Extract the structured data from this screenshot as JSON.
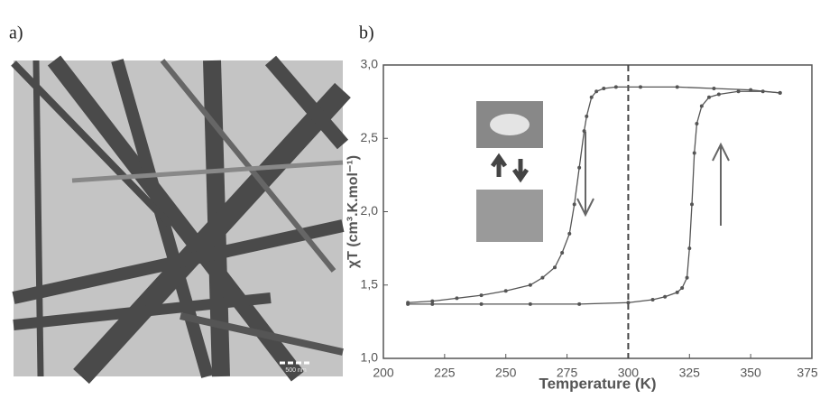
{
  "panels": {
    "a": {
      "label": "a)",
      "scale_bar": "500 nm"
    },
    "b": {
      "label": "b)"
    }
  },
  "chart_data": {
    "type": "line",
    "xlabel": "Temperature (K)",
    "ylabel": "χT (cm³.K.mol⁻¹)",
    "xlim": [
      200,
      375
    ],
    "ylim": [
      1.0,
      3.0
    ],
    "xticks": [
      200,
      225,
      250,
      275,
      300,
      325,
      350,
      375
    ],
    "yticks": [
      {
        "value": 1.0,
        "label": "1,0"
      },
      {
        "value": 1.5,
        "label": "1,5"
      },
      {
        "value": 2.0,
        "label": "2,0"
      },
      {
        "value": 2.5,
        "label": "2,5"
      },
      {
        "value": 3.0,
        "label": "3,0"
      }
    ],
    "vline": 300,
    "series": [
      {
        "color": "#555555",
        "x": [
          362,
          350,
          335,
          320,
          305,
          295,
          290,
          287,
          285,
          283,
          282,
          280,
          278,
          276,
          273,
          270,
          265,
          260,
          250,
          240,
          230,
          220,
          210
        ],
        "y": [
          2.81,
          2.83,
          2.84,
          2.85,
          2.85,
          2.85,
          2.84,
          2.82,
          2.78,
          2.65,
          2.55,
          2.3,
          2.05,
          1.85,
          1.72,
          1.62,
          1.55,
          1.5,
          1.46,
          1.43,
          1.41,
          1.39,
          1.38
        ]
      },
      {
        "color": "#555555",
        "x": [
          210,
          220,
          240,
          260,
          280,
          300,
          310,
          315,
          320,
          322,
          324,
          325,
          326,
          327,
          328,
          330,
          333,
          337,
          345,
          355,
          362
        ],
        "y": [
          1.37,
          1.37,
          1.37,
          1.37,
          1.37,
          1.38,
          1.4,
          1.42,
          1.45,
          1.48,
          1.55,
          1.75,
          2.05,
          2.4,
          2.6,
          2.72,
          2.78,
          2.8,
          2.82,
          2.82,
          2.81
        ]
      }
    ]
  }
}
